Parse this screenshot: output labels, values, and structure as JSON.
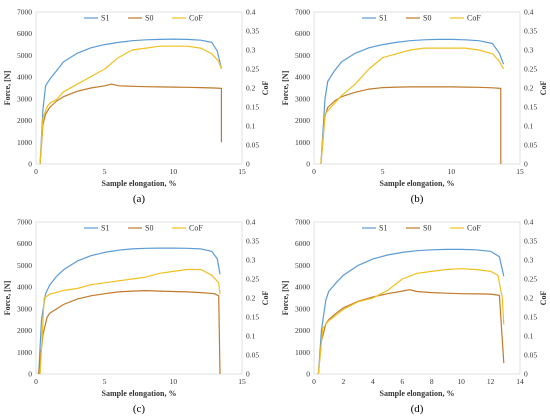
{
  "chart_data": [
    {
      "type": "line",
      "panel_label": "(a)",
      "xlabel": "Sample elongation, %",
      "ylabel": "Force, [N]",
      "y2label": "CoF",
      "xlim": [
        0,
        15
      ],
      "xticks": [
        0,
        5,
        10,
        15
      ],
      "ylim": [
        0,
        7000
      ],
      "yticks": [
        0,
        1000,
        2000,
        3000,
        4000,
        5000,
        6000,
        7000
      ],
      "y2lim": [
        0,
        0.4
      ],
      "y2ticks": [
        0,
        0.05,
        0.1,
        0.15,
        0.2,
        0.25,
        0.3,
        0.35,
        0.4
      ],
      "legend_position": "top",
      "series": [
        {
          "name": "S1",
          "color": "#5b9bd5",
          "axis": "left",
          "x": [
            0.3,
            0.5,
            0.7,
            1,
            1.5,
            2,
            3,
            4,
            5,
            6,
            7,
            8,
            9,
            10,
            11,
            12,
            12.8,
            13.2,
            13.5
          ],
          "y": [
            0,
            2500,
            3600,
            3900,
            4300,
            4700,
            5100,
            5350,
            5500,
            5600,
            5680,
            5720,
            5740,
            5750,
            5740,
            5700,
            5600,
            5200,
            4400
          ]
        },
        {
          "name": "S0",
          "color": "#c07a2a",
          "axis": "left",
          "x": [
            0.3,
            0.5,
            0.7,
            1,
            1.5,
            2,
            3,
            4,
            5,
            5.5,
            6,
            7,
            8,
            9,
            10,
            11,
            12,
            13,
            13.5,
            13.5
          ],
          "y": [
            0,
            1800,
            2300,
            2600,
            2900,
            3100,
            3350,
            3500,
            3600,
            3680,
            3600,
            3580,
            3560,
            3550,
            3540,
            3530,
            3520,
            3500,
            3480,
            1000
          ]
        },
        {
          "name": "CoF",
          "color": "#f0c020",
          "axis": "right",
          "x": [
            0.3,
            0.5,
            0.8,
            1,
            1.5,
            2,
            3,
            4,
            5,
            6,
            7,
            8,
            9,
            10,
            11,
            12,
            12.8,
            13.3,
            13.5
          ],
          "y": [
            0,
            0.12,
            0.15,
            0.16,
            0.17,
            0.19,
            0.21,
            0.23,
            0.25,
            0.28,
            0.3,
            0.305,
            0.31,
            0.31,
            0.31,
            0.305,
            0.29,
            0.27,
            0.25
          ]
        }
      ]
    },
    {
      "type": "line",
      "panel_label": "(b)",
      "xlabel": "Sample elongation, %",
      "ylabel": "Force, [N]",
      "y2label": "CoF",
      "xlim": [
        0,
        15
      ],
      "xticks": [
        0,
        5,
        10,
        15
      ],
      "ylim": [
        0,
        7000
      ],
      "yticks": [
        0,
        1000,
        2000,
        3000,
        4000,
        5000,
        6000,
        7000
      ],
      "y2lim": [
        0,
        0.4
      ],
      "y2ticks": [
        0,
        0.05,
        0.1,
        0.15,
        0.2,
        0.25,
        0.3,
        0.35,
        0.4
      ],
      "legend_position": "top",
      "series": [
        {
          "name": "S1",
          "color": "#5b9bd5",
          "axis": "left",
          "x": [
            0.5,
            0.8,
            1,
            1.5,
            2,
            3,
            4,
            5,
            6,
            7,
            8,
            9,
            10,
            11,
            12,
            13,
            13.5,
            13.8
          ],
          "y": [
            0,
            3000,
            3800,
            4300,
            4700,
            5100,
            5350,
            5500,
            5600,
            5680,
            5720,
            5740,
            5740,
            5720,
            5680,
            5550,
            5100,
            4600
          ]
        },
        {
          "name": "S0",
          "color": "#c07a2a",
          "axis": "left",
          "x": [
            0.5,
            0.8,
            1,
            1.5,
            2,
            3,
            4,
            5,
            6,
            7,
            8,
            9,
            10,
            11,
            12,
            13,
            13.6,
            13.6
          ],
          "y": [
            0,
            2200,
            2600,
            2900,
            3100,
            3300,
            3450,
            3520,
            3540,
            3550,
            3550,
            3550,
            3550,
            3540,
            3530,
            3510,
            3480,
            0
          ]
        },
        {
          "name": "CoF",
          "color": "#f0c020",
          "axis": "right",
          "x": [
            0.5,
            0.8,
            1,
            1.5,
            2,
            3,
            4,
            5,
            6,
            7,
            8,
            9,
            10,
            11,
            12,
            13,
            13.5,
            13.8
          ],
          "y": [
            0,
            0.13,
            0.14,
            0.16,
            0.18,
            0.21,
            0.25,
            0.28,
            0.29,
            0.3,
            0.305,
            0.305,
            0.305,
            0.305,
            0.3,
            0.29,
            0.27,
            0.25
          ]
        }
      ]
    },
    {
      "type": "line",
      "panel_label": "(c)",
      "xlabel": "Sample elongation, %",
      "ylabel": "Force, [N]",
      "y2label": "CoF",
      "xlim": [
        0,
        15
      ],
      "xticks": [
        0,
        5,
        10,
        15
      ],
      "ylim": [
        0,
        7000
      ],
      "yticks": [
        0,
        1000,
        2000,
        3000,
        4000,
        5000,
        6000,
        7000
      ],
      "y2lim": [
        0,
        0.4
      ],
      "y2ticks": [
        0,
        0.05,
        0.1,
        0.15,
        0.2,
        0.25,
        0.3,
        0.35,
        0.4
      ],
      "legend_position": "top",
      "series": [
        {
          "name": "S1",
          "color": "#5b9bd5",
          "axis": "left",
          "x": [
            0.2,
            0.4,
            0.7,
            1,
            1.5,
            2,
            3,
            4,
            5,
            6,
            7,
            8,
            9,
            10,
            11,
            12,
            12.8,
            13.2,
            13.4
          ],
          "y": [
            0,
            2500,
            3700,
            4100,
            4500,
            4800,
            5200,
            5450,
            5600,
            5700,
            5760,
            5790,
            5800,
            5800,
            5790,
            5760,
            5650,
            5300,
            4600
          ]
        },
        {
          "name": "S0",
          "color": "#c07a2a",
          "axis": "left",
          "x": [
            0.2,
            0.5,
            0.8,
            1,
            1.5,
            2,
            3,
            4,
            5,
            6,
            7,
            8,
            9,
            10,
            11,
            12,
            13,
            13.3,
            13.4
          ],
          "y": [
            0,
            1800,
            2600,
            2800,
            3000,
            3200,
            3450,
            3600,
            3700,
            3780,
            3820,
            3840,
            3820,
            3800,
            3780,
            3750,
            3700,
            3600,
            0
          ]
        },
        {
          "name": "CoF",
          "color": "#f0c020",
          "axis": "right",
          "x": [
            0.3,
            0.6,
            1,
            1.5,
            2,
            3,
            4,
            5,
            6,
            7,
            8,
            9,
            10,
            11,
            12,
            12.8,
            13.3,
            13.4
          ],
          "y": [
            0,
            0.2,
            0.21,
            0.215,
            0.22,
            0.225,
            0.235,
            0.24,
            0.245,
            0.25,
            0.255,
            0.265,
            0.27,
            0.275,
            0.275,
            0.26,
            0.24,
            0.21
          ]
        }
      ]
    },
    {
      "type": "line",
      "panel_label": "(d)",
      "xlabel": "Sample elongation, %",
      "ylabel": "Force, [N]",
      "y2label": "CoF",
      "xlim": [
        0,
        14
      ],
      "xticks": [
        0,
        2,
        4,
        6,
        8,
        10,
        12,
        14
      ],
      "ylim": [
        0,
        7000
      ],
      "yticks": [
        0,
        1000,
        2000,
        3000,
        4000,
        5000,
        6000,
        7000
      ],
      "y2lim": [
        0,
        0.4
      ],
      "y2ticks": [
        0,
        0.05,
        0.1,
        0.15,
        0.2,
        0.25,
        0.3,
        0.35,
        0.4
      ],
      "legend_position": "top",
      "series": [
        {
          "name": "S1",
          "color": "#5b9bd5",
          "axis": "left",
          "x": [
            0.3,
            0.5,
            0.8,
            1,
            1.5,
            2,
            3,
            4,
            5,
            6,
            7,
            8,
            9,
            10,
            11,
            12,
            12.6,
            12.9
          ],
          "y": [
            0,
            2000,
            3400,
            3800,
            4200,
            4550,
            5000,
            5300,
            5480,
            5600,
            5680,
            5720,
            5740,
            5740,
            5720,
            5650,
            5400,
            4500
          ]
        },
        {
          "name": "S0",
          "color": "#c07a2a",
          "axis": "left",
          "x": [
            0.3,
            0.5,
            0.8,
            1,
            1.5,
            2,
            3,
            4,
            5,
            6,
            6.5,
            7,
            8,
            9,
            10,
            11,
            12,
            12.6,
            12.9
          ],
          "y": [
            0,
            1500,
            2300,
            2500,
            2800,
            3050,
            3350,
            3550,
            3700,
            3820,
            3880,
            3800,
            3750,
            3720,
            3700,
            3690,
            3680,
            3620,
            500
          ]
        },
        {
          "name": "CoF",
          "color": "#f0c020",
          "axis": "right",
          "x": [
            0.3,
            0.6,
            1,
            1.5,
            2,
            3,
            4,
            5,
            6,
            7,
            8,
            9,
            10,
            11,
            12,
            12.5,
            12.8,
            12.9
          ],
          "y": [
            0,
            0.12,
            0.14,
            0.155,
            0.17,
            0.19,
            0.2,
            0.22,
            0.25,
            0.265,
            0.27,
            0.275,
            0.277,
            0.275,
            0.27,
            0.26,
            0.2,
            0.13
          ]
        }
      ]
    }
  ]
}
